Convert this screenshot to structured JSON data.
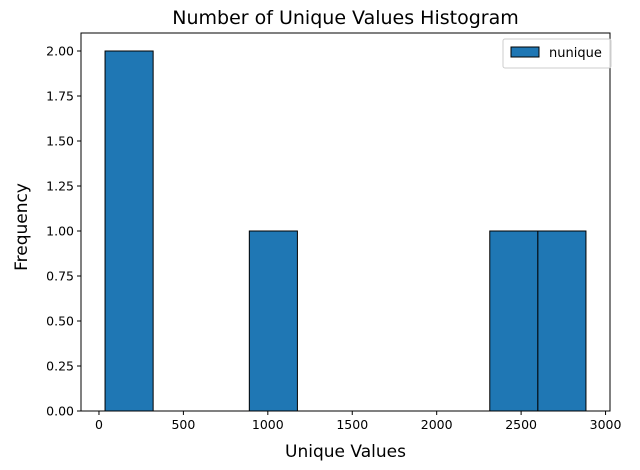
{
  "chart_data": {
    "type": "bar",
    "subtype": "histogram",
    "title": "Number of Unique Values Histogram",
    "xlabel": "Unique Values",
    "ylabel": "Frequency",
    "bin_edges": [
      36,
      320.8,
      605.6,
      890.4,
      1175.2,
      1460,
      1744.8,
      2029.6,
      2314.4,
      2599.2,
      2884
    ],
    "values": [
      2,
      0,
      0,
      1,
      0,
      0,
      0,
      0,
      1,
      1
    ],
    "series": [
      {
        "name": "nunique",
        "values": [
          2,
          0,
          0,
          1,
          0,
          0,
          0,
          0,
          1,
          1
        ]
      }
    ],
    "xlim": [
      -106.4,
      3026.4
    ],
    "ylim": [
      0,
      2.1
    ],
    "xticks": [
      0,
      500,
      1000,
      1500,
      2000,
      2500,
      3000
    ],
    "xtick_labels": [
      "0",
      "500",
      "1000",
      "1500",
      "2000",
      "2500",
      "3000"
    ],
    "yticks": [
      0,
      0.25,
      0.5,
      0.75,
      1.0,
      1.25,
      1.5,
      1.75,
      2.0
    ],
    "ytick_labels": [
      "0.00",
      "0.25",
      "0.50",
      "0.75",
      "1.00",
      "1.25",
      "1.50",
      "1.75",
      "2.00"
    ],
    "grid": false,
    "legend_position": "top-right",
    "bar_color": "#1f77b4",
    "edge_color": "#000000"
  }
}
